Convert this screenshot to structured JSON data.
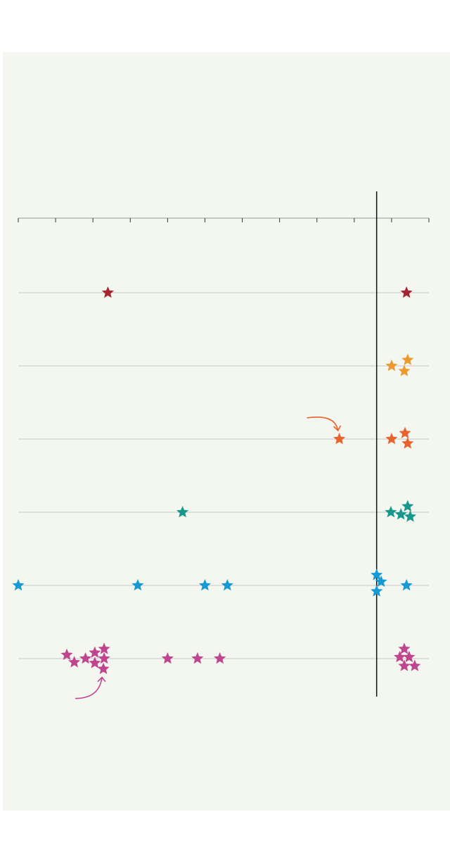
{
  "chart_data": {
    "type": "scatter",
    "title": "",
    "xlabel": "",
    "ylabel": "",
    "xlim": [
      0,
      11
    ],
    "x_ticks": [
      0,
      1,
      2,
      3,
      4,
      5,
      6,
      7,
      8,
      9,
      10,
      11
    ],
    "reference_line": {
      "x": 9.6
    },
    "grid": "horizontal",
    "marker": "star",
    "series": [
      {
        "color": "#a5262e",
        "points": [
          {
            "x": 2.4,
            "y": 0
          },
          {
            "x": 10.4,
            "y": 0
          }
        ]
      },
      {
        "color": "#eb9a2e",
        "points": [
          {
            "x": 10.0,
            "y": 0
          },
          {
            "x": 10.43,
            "y": 0.08
          },
          {
            "x": 10.34,
            "y": -0.07
          }
        ]
      },
      {
        "color": "#e9622c",
        "points": [
          {
            "x": 8.6,
            "y": 0
          },
          {
            "x": 10.0,
            "y": 0
          },
          {
            "x": 10.36,
            "y": 0.08
          },
          {
            "x": 10.43,
            "y": -0.06
          }
        ]
      },
      {
        "color": "#16998c",
        "points": [
          {
            "x": 4.4,
            "y": 0
          },
          {
            "x": 9.98,
            "y": 0
          },
          {
            "x": 10.25,
            "y": -0.03
          },
          {
            "x": 10.43,
            "y": 0.08
          },
          {
            "x": 10.5,
            "y": -0.06
          }
        ]
      },
      {
        "color": "#169ad5",
        "points": [
          {
            "x": 0.0,
            "y": 0
          },
          {
            "x": 3.2,
            "y": 0
          },
          {
            "x": 5.0,
            "y": 0
          },
          {
            "x": 5.6,
            "y": 0
          },
          {
            "x": 9.6,
            "y": 0.14
          },
          {
            "x": 9.72,
            "y": 0.05
          },
          {
            "x": 9.6,
            "y": -0.08
          },
          {
            "x": 10.4,
            "y": 0
          }
        ]
      },
      {
        "color": "#c0458f",
        "points": [
          {
            "x": 1.3,
            "y": 0.05
          },
          {
            "x": 1.5,
            "y": -0.05
          },
          {
            "x": 1.8,
            "y": 0
          },
          {
            "x": 2.05,
            "y": 0.08
          },
          {
            "x": 2.3,
            "y": 0.13
          },
          {
            "x": 2.05,
            "y": -0.06
          },
          {
            "x": 2.3,
            "y": 0
          },
          {
            "x": 2.28,
            "y": -0.14
          },
          {
            "x": 4.0,
            "y": 0
          },
          {
            "x": 4.8,
            "y": 0
          },
          {
            "x": 5.4,
            "y": 0
          },
          {
            "x": 10.34,
            "y": 0.13
          },
          {
            "x": 10.22,
            "y": 0.02
          },
          {
            "x": 10.47,
            "y": 0.02
          },
          {
            "x": 10.34,
            "y": -0.1
          },
          {
            "x": 10.62,
            "y": -0.1
          }
        ]
      }
    ],
    "annotations": [
      {
        "series_index": 2,
        "point_index": 0,
        "color": "#e9622c",
        "from": "upper-left"
      },
      {
        "series_index": 5,
        "point_index": 7,
        "color": "#c0458f",
        "from": "lower-left"
      }
    ]
  }
}
